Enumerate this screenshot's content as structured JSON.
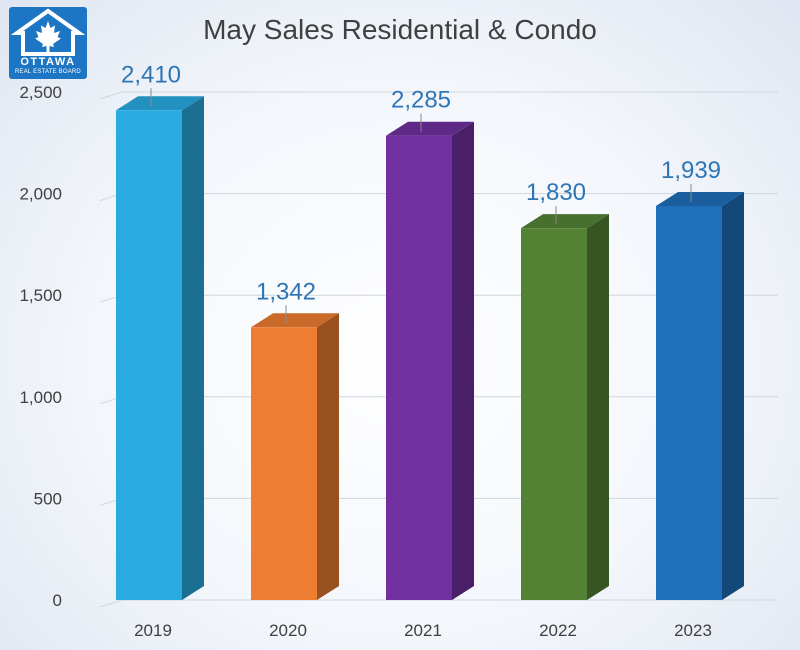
{
  "logo": {
    "icon": "house-maple-leaf-icon",
    "word": "OTTAWA",
    "sub": "REAL ESTATE BOARD"
  },
  "chart_data": {
    "type": "bar",
    "title": "May Sales Residential & Condo",
    "xlabel": "",
    "ylabel": "",
    "categories": [
      "2019",
      "2020",
      "2021",
      "2022",
      "2023"
    ],
    "values": [
      2410,
      1342,
      2285,
      1830,
      1939
    ],
    "value_labels": [
      "2,410",
      "1,342",
      "2,285",
      "1,830",
      "1,939"
    ],
    "ylim": [
      0,
      2500
    ],
    "yticks": [
      0,
      500,
      1000,
      1500,
      2000,
      2500
    ],
    "ytick_labels": [
      "0",
      "500",
      "1,000",
      "1,500",
      "2,000",
      "2,500"
    ],
    "grid": true,
    "legend": "none",
    "style": "3d-column",
    "bar_colors": [
      "#29abe2",
      "#ed7d31",
      "#7030a0",
      "#548235",
      "#1f6fb9"
    ],
    "label_color": "#2e75b6"
  }
}
